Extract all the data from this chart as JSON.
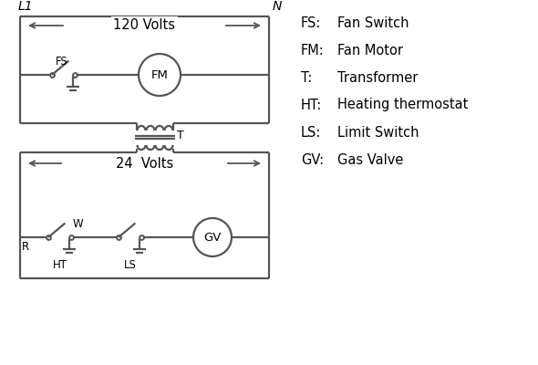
{
  "bg_color": "#ffffff",
  "line_color": "#555555",
  "text_color": "#000000",
  "legend_items": [
    [
      "FS:",
      "Fan Switch"
    ],
    [
      "FM:",
      "Fan Motor"
    ],
    [
      "T:",
      "Transformer"
    ],
    [
      "HT:",
      "Heating thermostat"
    ],
    [
      "LS:",
      "Limit Switch"
    ],
    [
      "GV:",
      "Gas Valve"
    ]
  ],
  "L1_label": "L1",
  "N_label": "N",
  "volts120_label": "120 Volts",
  "volts24_label": "24  Volts",
  "transformer_label": "T",
  "fs_label": "FS",
  "fm_label": "FM",
  "r_label": "R",
  "w_label": "W",
  "ht_label": "HT",
  "ls_label": "LS",
  "gv_label": "GV"
}
